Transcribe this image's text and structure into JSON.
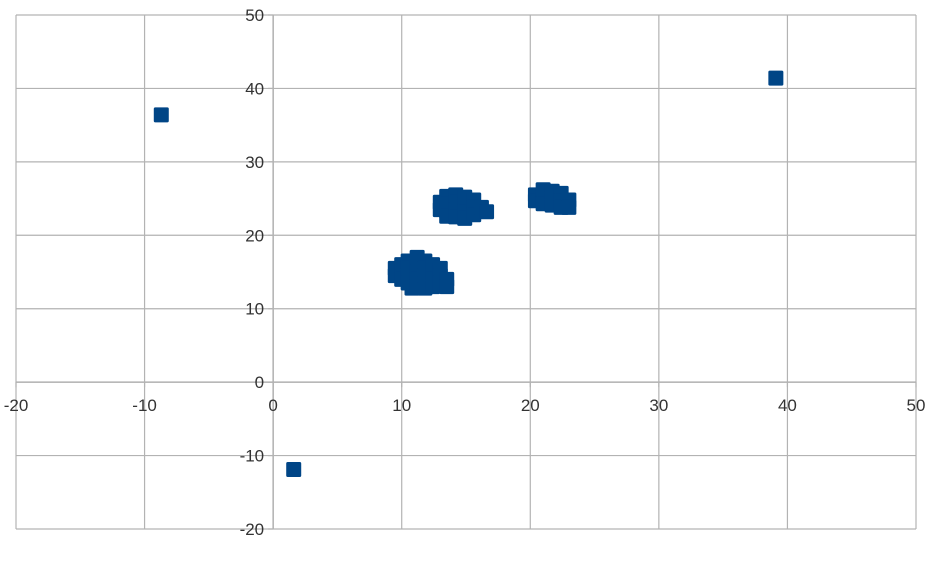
{
  "chart_data": {
    "type": "scatter",
    "title": "",
    "xlabel": "",
    "ylabel": "",
    "xlim": [
      -20,
      50
    ],
    "ylim": [
      -20,
      50
    ],
    "xticks": [
      -20,
      -10,
      0,
      10,
      20,
      30,
      40,
      50
    ],
    "yticks": [
      -20,
      -10,
      0,
      10,
      20,
      30,
      40,
      50
    ],
    "grid": true,
    "legend": "none",
    "marker": "square",
    "color": "#004586",
    "points": [
      [
        -8.7,
        36.4
      ],
      [
        39.1,
        41.4
      ],
      [
        1.6,
        -11.9
      ],
      [
        9.5,
        15.5
      ],
      [
        9.5,
        14.5
      ],
      [
        10,
        16
      ],
      [
        10,
        15
      ],
      [
        10,
        14
      ],
      [
        10.5,
        16.5
      ],
      [
        10.5,
        15.5
      ],
      [
        10.5,
        14.5
      ],
      [
        10.5,
        13.5
      ],
      [
        10.8,
        12.8
      ],
      [
        11.2,
        17
      ],
      [
        11.2,
        16
      ],
      [
        11.2,
        15
      ],
      [
        11.2,
        14
      ],
      [
        11.2,
        13
      ],
      [
        11.8,
        16.5
      ],
      [
        11.8,
        15.5
      ],
      [
        11.8,
        14.5
      ],
      [
        11.8,
        13.5
      ],
      [
        11.8,
        12.8
      ],
      [
        12.4,
        16
      ],
      [
        12.4,
        15
      ],
      [
        12.4,
        14
      ],
      [
        12.4,
        13
      ],
      [
        13,
        15.5
      ],
      [
        13,
        14.5
      ],
      [
        13,
        13.5
      ],
      [
        13.5,
        14
      ],
      [
        13.5,
        13
      ],
      [
        13,
        24.5
      ],
      [
        13,
        23.5
      ],
      [
        13.5,
        25.3
      ],
      [
        13.5,
        24.3
      ],
      [
        13.5,
        23.3
      ],
      [
        13.5,
        22.6
      ],
      [
        14.2,
        25.5
      ],
      [
        14.2,
        24.5
      ],
      [
        14.2,
        23.5
      ],
      [
        14.2,
        22.5
      ],
      [
        14.9,
        25.2
      ],
      [
        14.9,
        24.2
      ],
      [
        14.9,
        23.2
      ],
      [
        14.9,
        22.3
      ],
      [
        15.6,
        24.8
      ],
      [
        15.6,
        23.8
      ],
      [
        15.6,
        22.8
      ],
      [
        16.2,
        23.8
      ],
      [
        16.6,
        23.2
      ],
      [
        20.4,
        25.5
      ],
      [
        20.4,
        24.7
      ],
      [
        21,
        26.2
      ],
      [
        21,
        25.2
      ],
      [
        21,
        24.3
      ],
      [
        21.7,
        26
      ],
      [
        21.7,
        25
      ],
      [
        21.7,
        24.1
      ],
      [
        22.4,
        25.7
      ],
      [
        22.4,
        24.7
      ],
      [
        22.4,
        23.8
      ],
      [
        23,
        24.8
      ],
      [
        23,
        23.8
      ]
    ]
  }
}
